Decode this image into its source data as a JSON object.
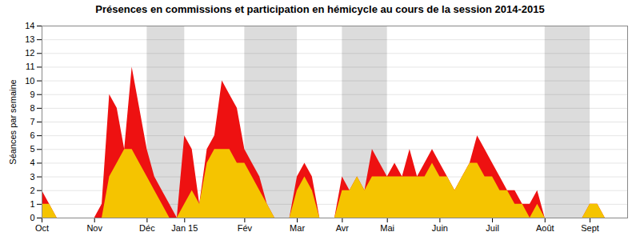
{
  "chart_data": {
    "type": "area",
    "title": "Présences en commissions et participation en hémicycle au cours de la session 2014-2015",
    "ylabel": "Séances par semaine",
    "x": [
      0,
      1,
      2,
      3,
      4,
      5,
      6,
      7,
      8,
      9,
      10,
      11,
      12,
      13,
      14,
      15,
      16,
      17,
      18,
      19,
      20,
      21,
      22,
      23,
      24,
      25,
      26,
      27,
      28,
      29,
      30,
      31,
      32,
      33,
      34,
      35,
      36,
      37,
      38,
      39,
      40,
      41,
      42,
      43,
      44,
      45,
      46,
      47,
      48,
      49,
      50,
      51,
      52,
      53,
      54,
      55,
      56,
      57,
      58,
      59,
      60,
      61,
      62,
      63,
      64,
      65,
      66,
      67,
      68,
      69,
      70,
      71,
      72,
      73,
      74,
      75,
      76,
      77
    ],
    "series": [
      {
        "color": "#ee1111",
        "values": [
          2,
          1,
          0,
          0,
          0,
          0,
          0,
          0,
          1,
          9,
          8,
          5,
          11,
          8,
          5,
          3,
          2,
          1,
          0,
          6,
          5,
          1,
          5,
          6,
          10,
          9,
          8,
          5,
          4,
          3,
          1,
          0,
          0,
          0,
          3,
          4,
          3,
          0,
          0,
          0,
          3,
          2,
          3,
          2,
          5,
          4,
          3,
          4,
          3,
          5,
          3,
          4,
          5,
          4,
          3,
          2,
          3,
          4,
          6,
          5,
          4,
          3,
          2,
          2,
          1,
          1,
          2,
          0,
          0,
          0,
          0,
          0,
          0,
          1,
          1,
          0,
          0,
          0
        ]
      },
      {
        "color": "#f5c400",
        "values": [
          1,
          1,
          0,
          0,
          0,
          0,
          0,
          0,
          0,
          3,
          4,
          5,
          5,
          4,
          3,
          2,
          1,
          0,
          0,
          1,
          2,
          1,
          4,
          5,
          5,
          5,
          4,
          4,
          3,
          2,
          1,
          0,
          0,
          0,
          2,
          3,
          2,
          0,
          0,
          0,
          2,
          2,
          3,
          2,
          3,
          3,
          3,
          3,
          3,
          3,
          3,
          3,
          4,
          3,
          3,
          2,
          3,
          4,
          4,
          3,
          3,
          2,
          2,
          1,
          1,
          0,
          1,
          0,
          0,
          0,
          0,
          0,
          0,
          1,
          1,
          0,
          0,
          0
        ]
      },
      {
        "color": "#33cc00",
        "values": [
          0,
          0,
          0,
          0,
          0,
          0,
          0,
          0,
          0,
          0,
          0,
          0,
          0,
          0,
          0,
          0,
          0,
          0,
          0,
          0,
          0,
          0,
          0,
          0,
          0,
          0,
          0,
          0,
          0,
          0,
          0,
          0,
          0,
          0,
          0,
          0,
          0,
          0,
          0,
          0,
          0,
          0,
          0,
          0,
          0,
          0,
          0,
          0,
          0,
          0,
          0,
          0,
          0,
          0,
          0,
          0,
          0,
          0,
          0,
          0,
          0,
          0,
          0,
          0,
          0,
          0,
          0,
          0,
          0,
          0,
          0,
          0,
          0,
          0,
          0,
          0,
          0,
          0
        ]
      }
    ],
    "xlim": [
      0,
      78
    ],
    "xticks": [
      {
        "value": 0,
        "label": "Oct"
      },
      {
        "value": 7,
        "label": "Nov"
      },
      {
        "value": 14,
        "label": "Déc"
      },
      {
        "value": 19,
        "label": "Jan 15"
      },
      {
        "value": 27,
        "label": "Fév"
      },
      {
        "value": 34,
        "label": "Mar"
      },
      {
        "value": 40,
        "label": "Avr"
      },
      {
        "value": 46,
        "label": "Mai"
      },
      {
        "value": 53,
        "label": "Juin"
      },
      {
        "value": 60,
        "label": "Juil"
      },
      {
        "value": 67,
        "label": "Août"
      },
      {
        "value": 73,
        "label": "Sept"
      }
    ],
    "ylim": [
      0,
      14
    ],
    "yticks": [
      0,
      1,
      2,
      3,
      4,
      5,
      6,
      7,
      8,
      9,
      10,
      11,
      12,
      13,
      14
    ],
    "shaded_ranges": [
      [
        14,
        19
      ],
      [
        27,
        34
      ],
      [
        40,
        46
      ],
      [
        67,
        73
      ]
    ],
    "hline": 14,
    "grid": true
  }
}
